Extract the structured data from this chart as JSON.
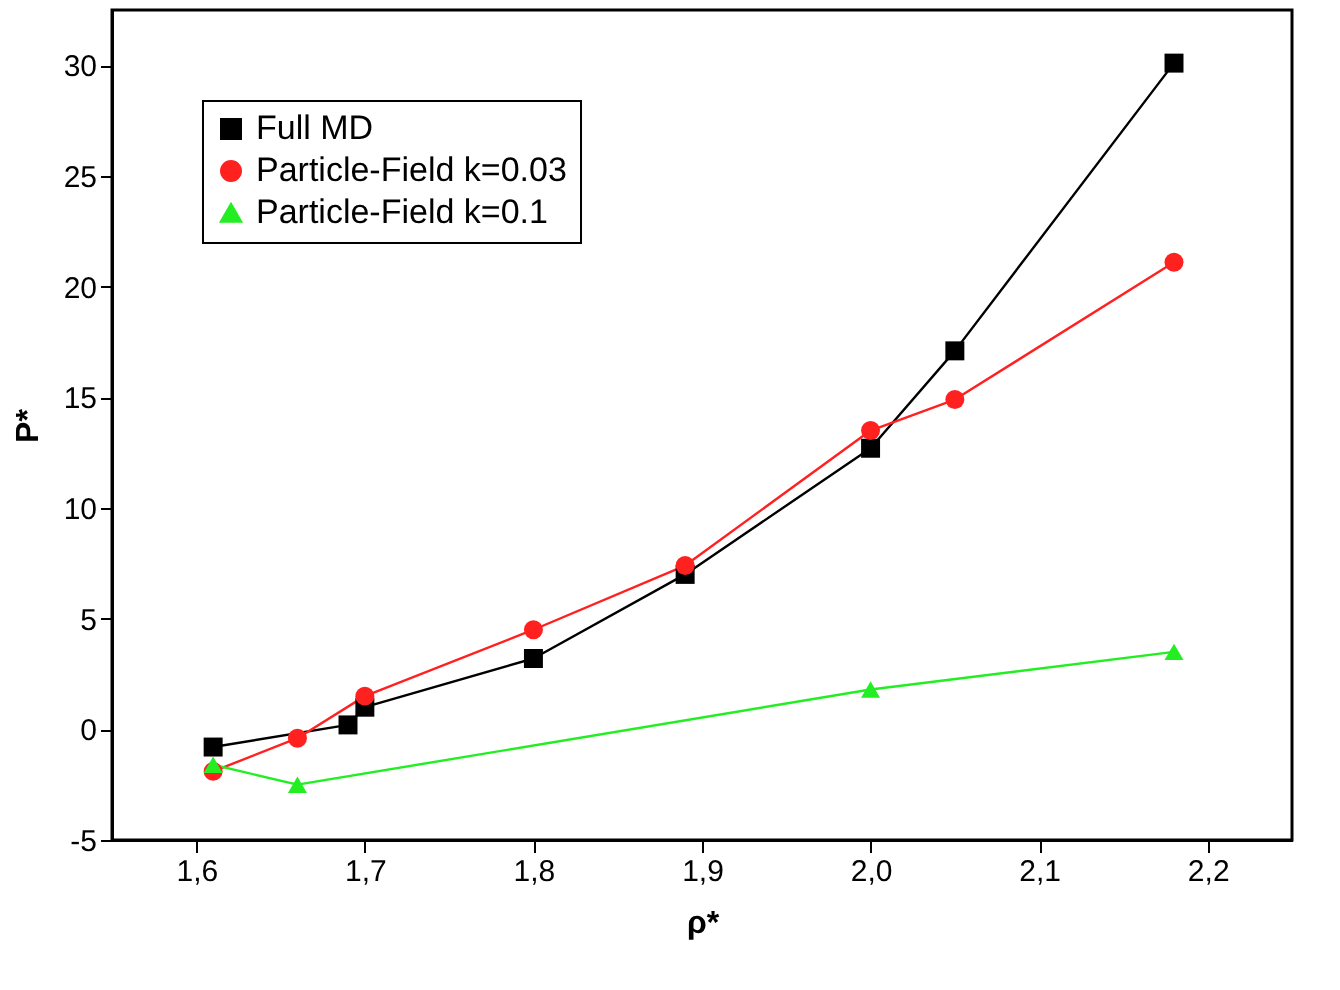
{
  "chart_data": {
    "type": "line",
    "xlabel": "ρ*",
    "ylabel": "P*",
    "xlim": [
      1.55,
      2.25
    ],
    "ylim": [
      -5,
      32.5
    ],
    "xticks": [
      {
        "value": 1.6,
        "label": "1,6"
      },
      {
        "value": 1.7,
        "label": "1,7"
      },
      {
        "value": 1.8,
        "label": "1,8"
      },
      {
        "value": 1.9,
        "label": "1,9"
      },
      {
        "value": 2.0,
        "label": "2,0"
      },
      {
        "value": 2.1,
        "label": "2,1"
      },
      {
        "value": 2.2,
        "label": "2,2"
      }
    ],
    "yticks": [
      -5,
      0,
      5,
      10,
      15,
      20,
      25,
      30
    ],
    "grid": false,
    "legend": "top left",
    "line_style": "solid",
    "series": [
      {
        "name": "Full MD",
        "color": "#000000",
        "marker": "square",
        "x": [
          1.61,
          1.69,
          1.7,
          1.8,
          1.89,
          2.0,
          2.05,
          2.18
        ],
        "values": [
          -0.8,
          0.2,
          1.0,
          3.2,
          7.0,
          12.7,
          17.1,
          30.1
        ]
      },
      {
        "name": "Particle-Field k=0.03",
        "color": "#ff2020",
        "marker": "circle",
        "x": [
          1.61,
          1.66,
          1.7,
          1.8,
          1.89,
          2.0,
          2.05,
          2.18
        ],
        "values": [
          -1.9,
          -0.4,
          1.5,
          4.5,
          7.4,
          13.5,
          14.9,
          21.1
        ]
      },
      {
        "name": "Particle-Field k=0.1",
        "color": "#22ee22",
        "marker": "triangle",
        "x": [
          1.61,
          1.66,
          2.0,
          2.18
        ],
        "values": [
          -1.6,
          -2.5,
          1.8,
          3.5
        ]
      }
    ]
  }
}
